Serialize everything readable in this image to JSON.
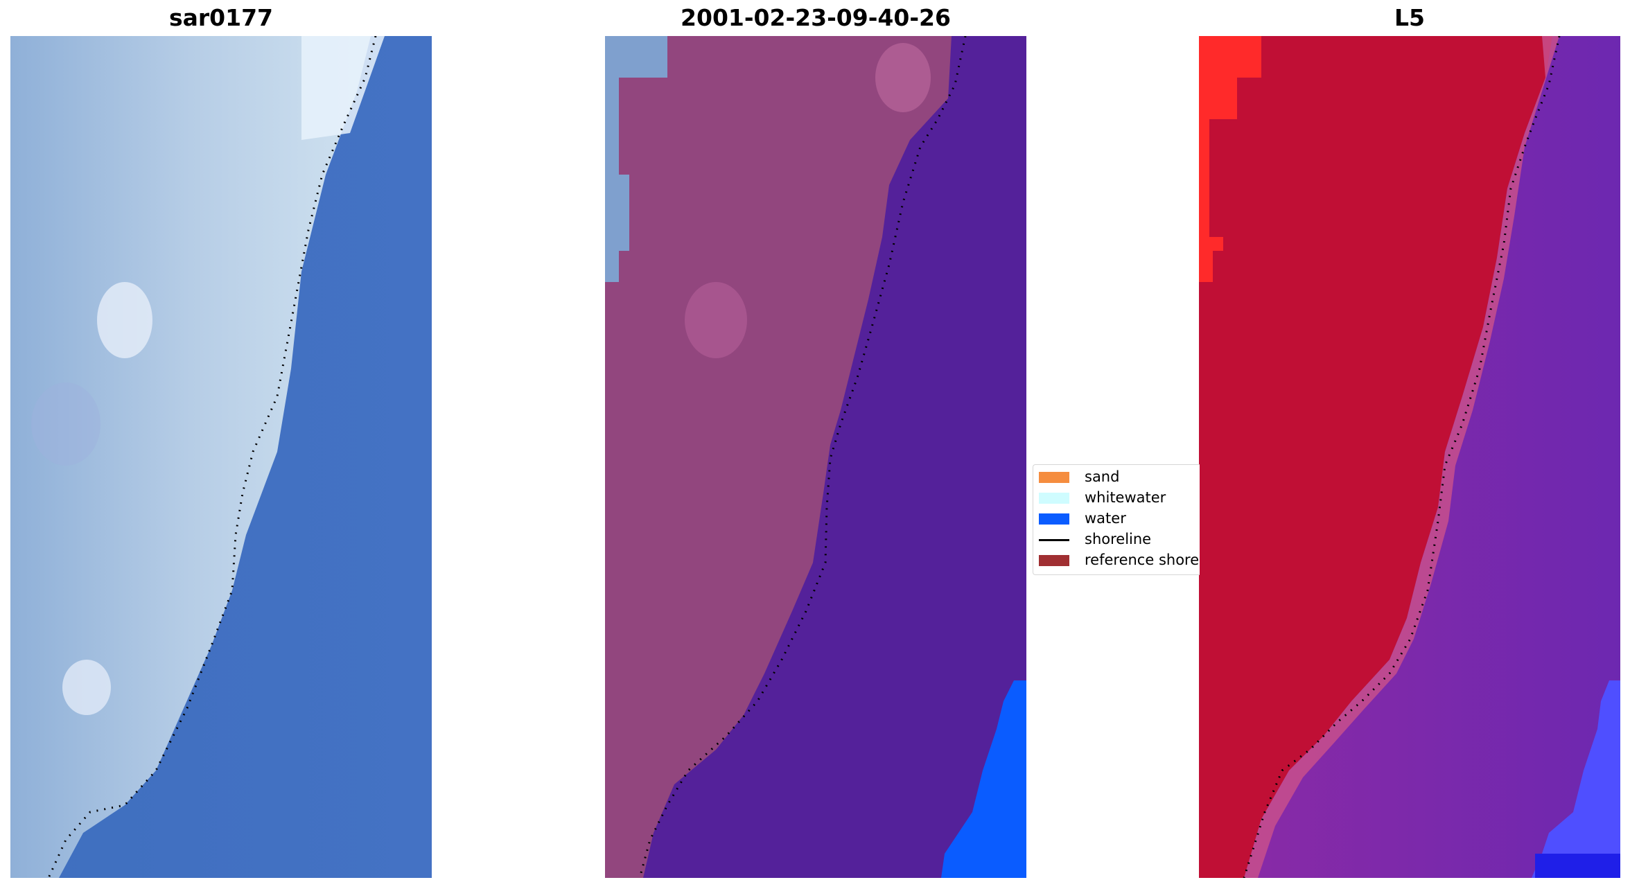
{
  "titles": {
    "left": "sar0177",
    "center": "2001-02-23-09-40-26",
    "right": "L5"
  },
  "legend": {
    "items": [
      {
        "label": "sand",
        "color": "#f58d3f",
        "kind": "swatch"
      },
      {
        "label": "whitewater",
        "color": "#cffcff",
        "kind": "swatch"
      },
      {
        "label": "water",
        "color": "#0a5cff",
        "kind": "swatch"
      },
      {
        "label": "shoreline",
        "color": "#000000",
        "kind": "line"
      },
      {
        "label": "reference shoreline",
        "color": "#a02f32",
        "kind": "swatch"
      }
    ]
  },
  "colors": {
    "rgb_water": "#4073c4",
    "rgb_land": "#a9c4df",
    "class_land": "#92467e",
    "class_water": "#54219a",
    "class_water_bright": "#0a5cff",
    "mndwi_land": "#c00f35",
    "mndwi_land_bright": "#ff2a2a",
    "mndwi_water": "#7a2db0",
    "mndwi_water_bright": "#4f4fff",
    "shoreline": "#000000"
  }
}
